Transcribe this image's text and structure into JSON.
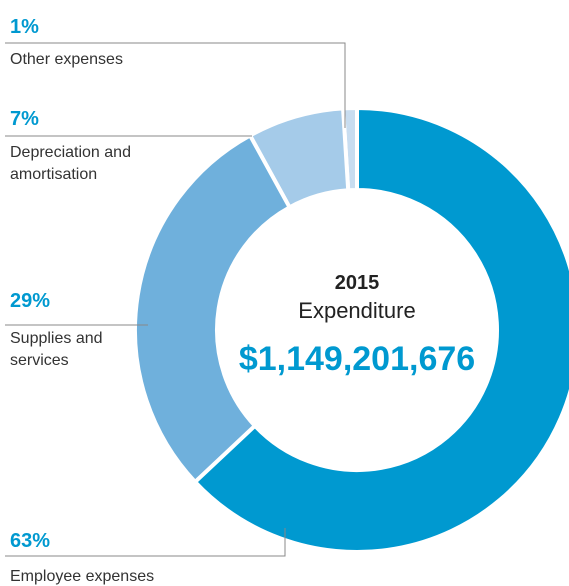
{
  "chart_data": {
    "type": "donut",
    "center_text": [
      "2015",
      "Expenditure"
    ],
    "total_label": "$1,149,201,676",
    "categories": [
      "Employee expenses",
      "Supplies and services",
      "Depreciation and amortisation",
      "Other expenses"
    ],
    "values": [
      63,
      29,
      7,
      1
    ],
    "value_labels": [
      "63%",
      "29%",
      "7%",
      "1%"
    ],
    "colors": [
      "#0099d0",
      "#6fb0dc",
      "#a5cbe9",
      "#c8ddf0"
    ]
  }
}
